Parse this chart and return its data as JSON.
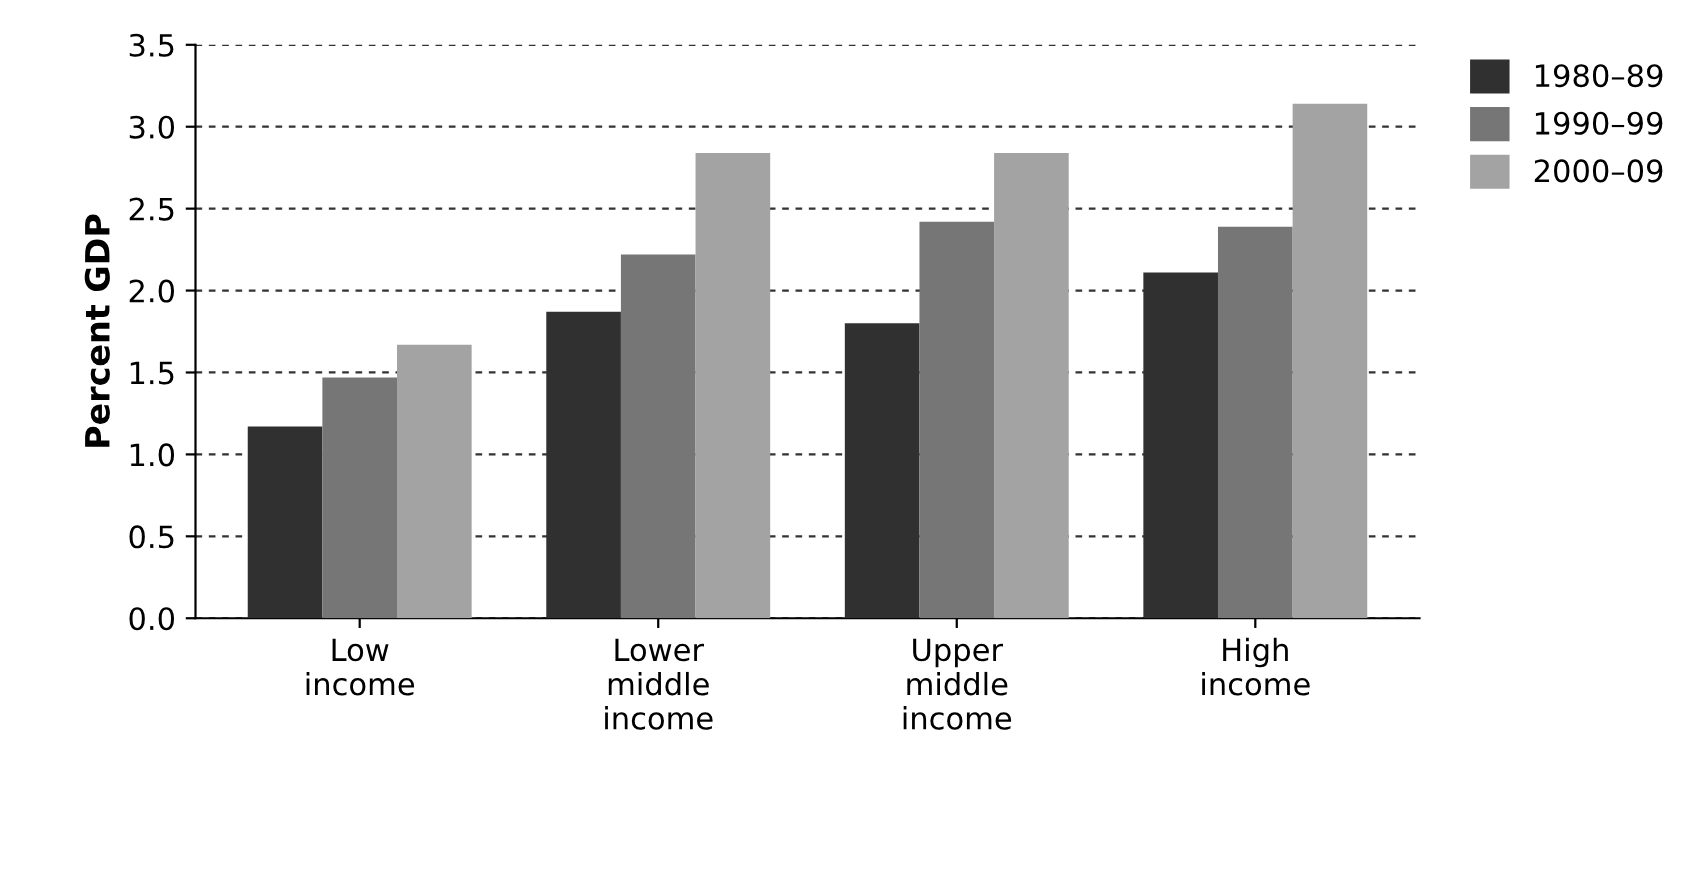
{
  "chart_data": {
    "type": "bar",
    "ylabel": "Percent GDP",
    "categories": [
      "Low\nincome",
      "Lower\nmiddle\nincome",
      "Upper\nmiddle\nincome",
      "High\nincome"
    ],
    "series": [
      {
        "name": "1980–89",
        "color": "#303030",
        "values": [
          1.17,
          1.87,
          1.8,
          2.11
        ]
      },
      {
        "name": "1990–99",
        "color": "#767676",
        "values": [
          1.47,
          2.22,
          2.42,
          2.39
        ]
      },
      {
        "name": "2000–09",
        "color": "#a3a3a3",
        "values": [
          1.67,
          2.84,
          2.84,
          3.14
        ]
      }
    ],
    "ylim": [
      0,
      3.5
    ],
    "yticks": [
      {
        "value": 0,
        "label": "0.0"
      },
      {
        "value": 0.5,
        "label": "0.5"
      },
      {
        "value": 1,
        "label": "1.0"
      },
      {
        "value": 1.5,
        "label": "1.5"
      },
      {
        "value": 2,
        "label": "2.0"
      },
      {
        "value": 2.5,
        "label": "2.5"
      },
      {
        "value": 3,
        "label": "3.0"
      },
      {
        "value": 3.5,
        "label": "3.5"
      }
    ],
    "grid": "y",
    "legend": "top right"
  }
}
